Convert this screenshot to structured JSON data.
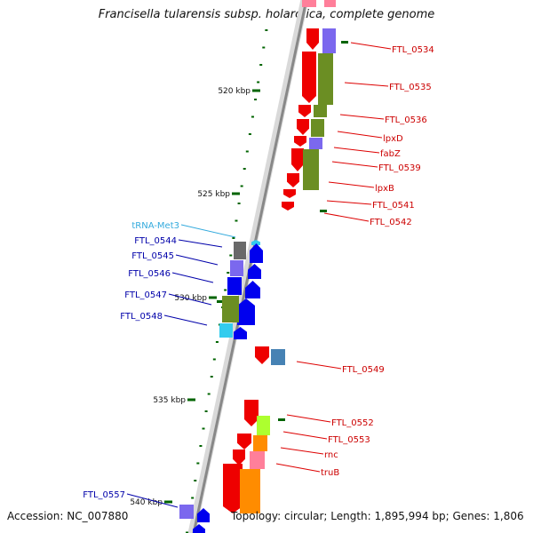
{
  "title": "Francisella tularensis subsp. holarctica, complete genome",
  "accession": "Accession: NC_007880",
  "summary": "Topology: circular; Length: 1,895,994 bp; Genes: 1,806",
  "ruler": [
    "520 kbp",
    "525 kbp",
    "530 kbp",
    "535 kbp",
    "540 kbp"
  ],
  "labels_right": [
    "FTL_0534",
    "FTL_0535",
    "FTL_0536",
    "lpxD",
    "fabZ",
    "FTL_0539",
    "lpxB",
    "FTL_0541",
    "FTL_0542",
    "FTL_0549",
    "FTL_0552",
    "FTL_0553",
    "rnc",
    "truB"
  ],
  "labels_left": [
    "tRNA-Met3",
    "FTL_0544",
    "FTL_0545",
    "FTL_0546",
    "FTL_0547",
    "FTL_0548",
    "FTL_0557"
  ],
  "colors": {
    "forward_cds": "#0000ee",
    "reverse_cds": "#ee0000",
    "trna": "#33ccee",
    "cog_green": "#6b8e23",
    "cog_purple": "#7b68ee",
    "cog_gray": "#696969",
    "cog_orange": "#ff8c00",
    "cog_pink": "#ff7f9a",
    "cog_lime": "#adff2f",
    "cog_steel": "#4682b4",
    "tick": "#006400",
    "backbone": "#888888"
  }
}
